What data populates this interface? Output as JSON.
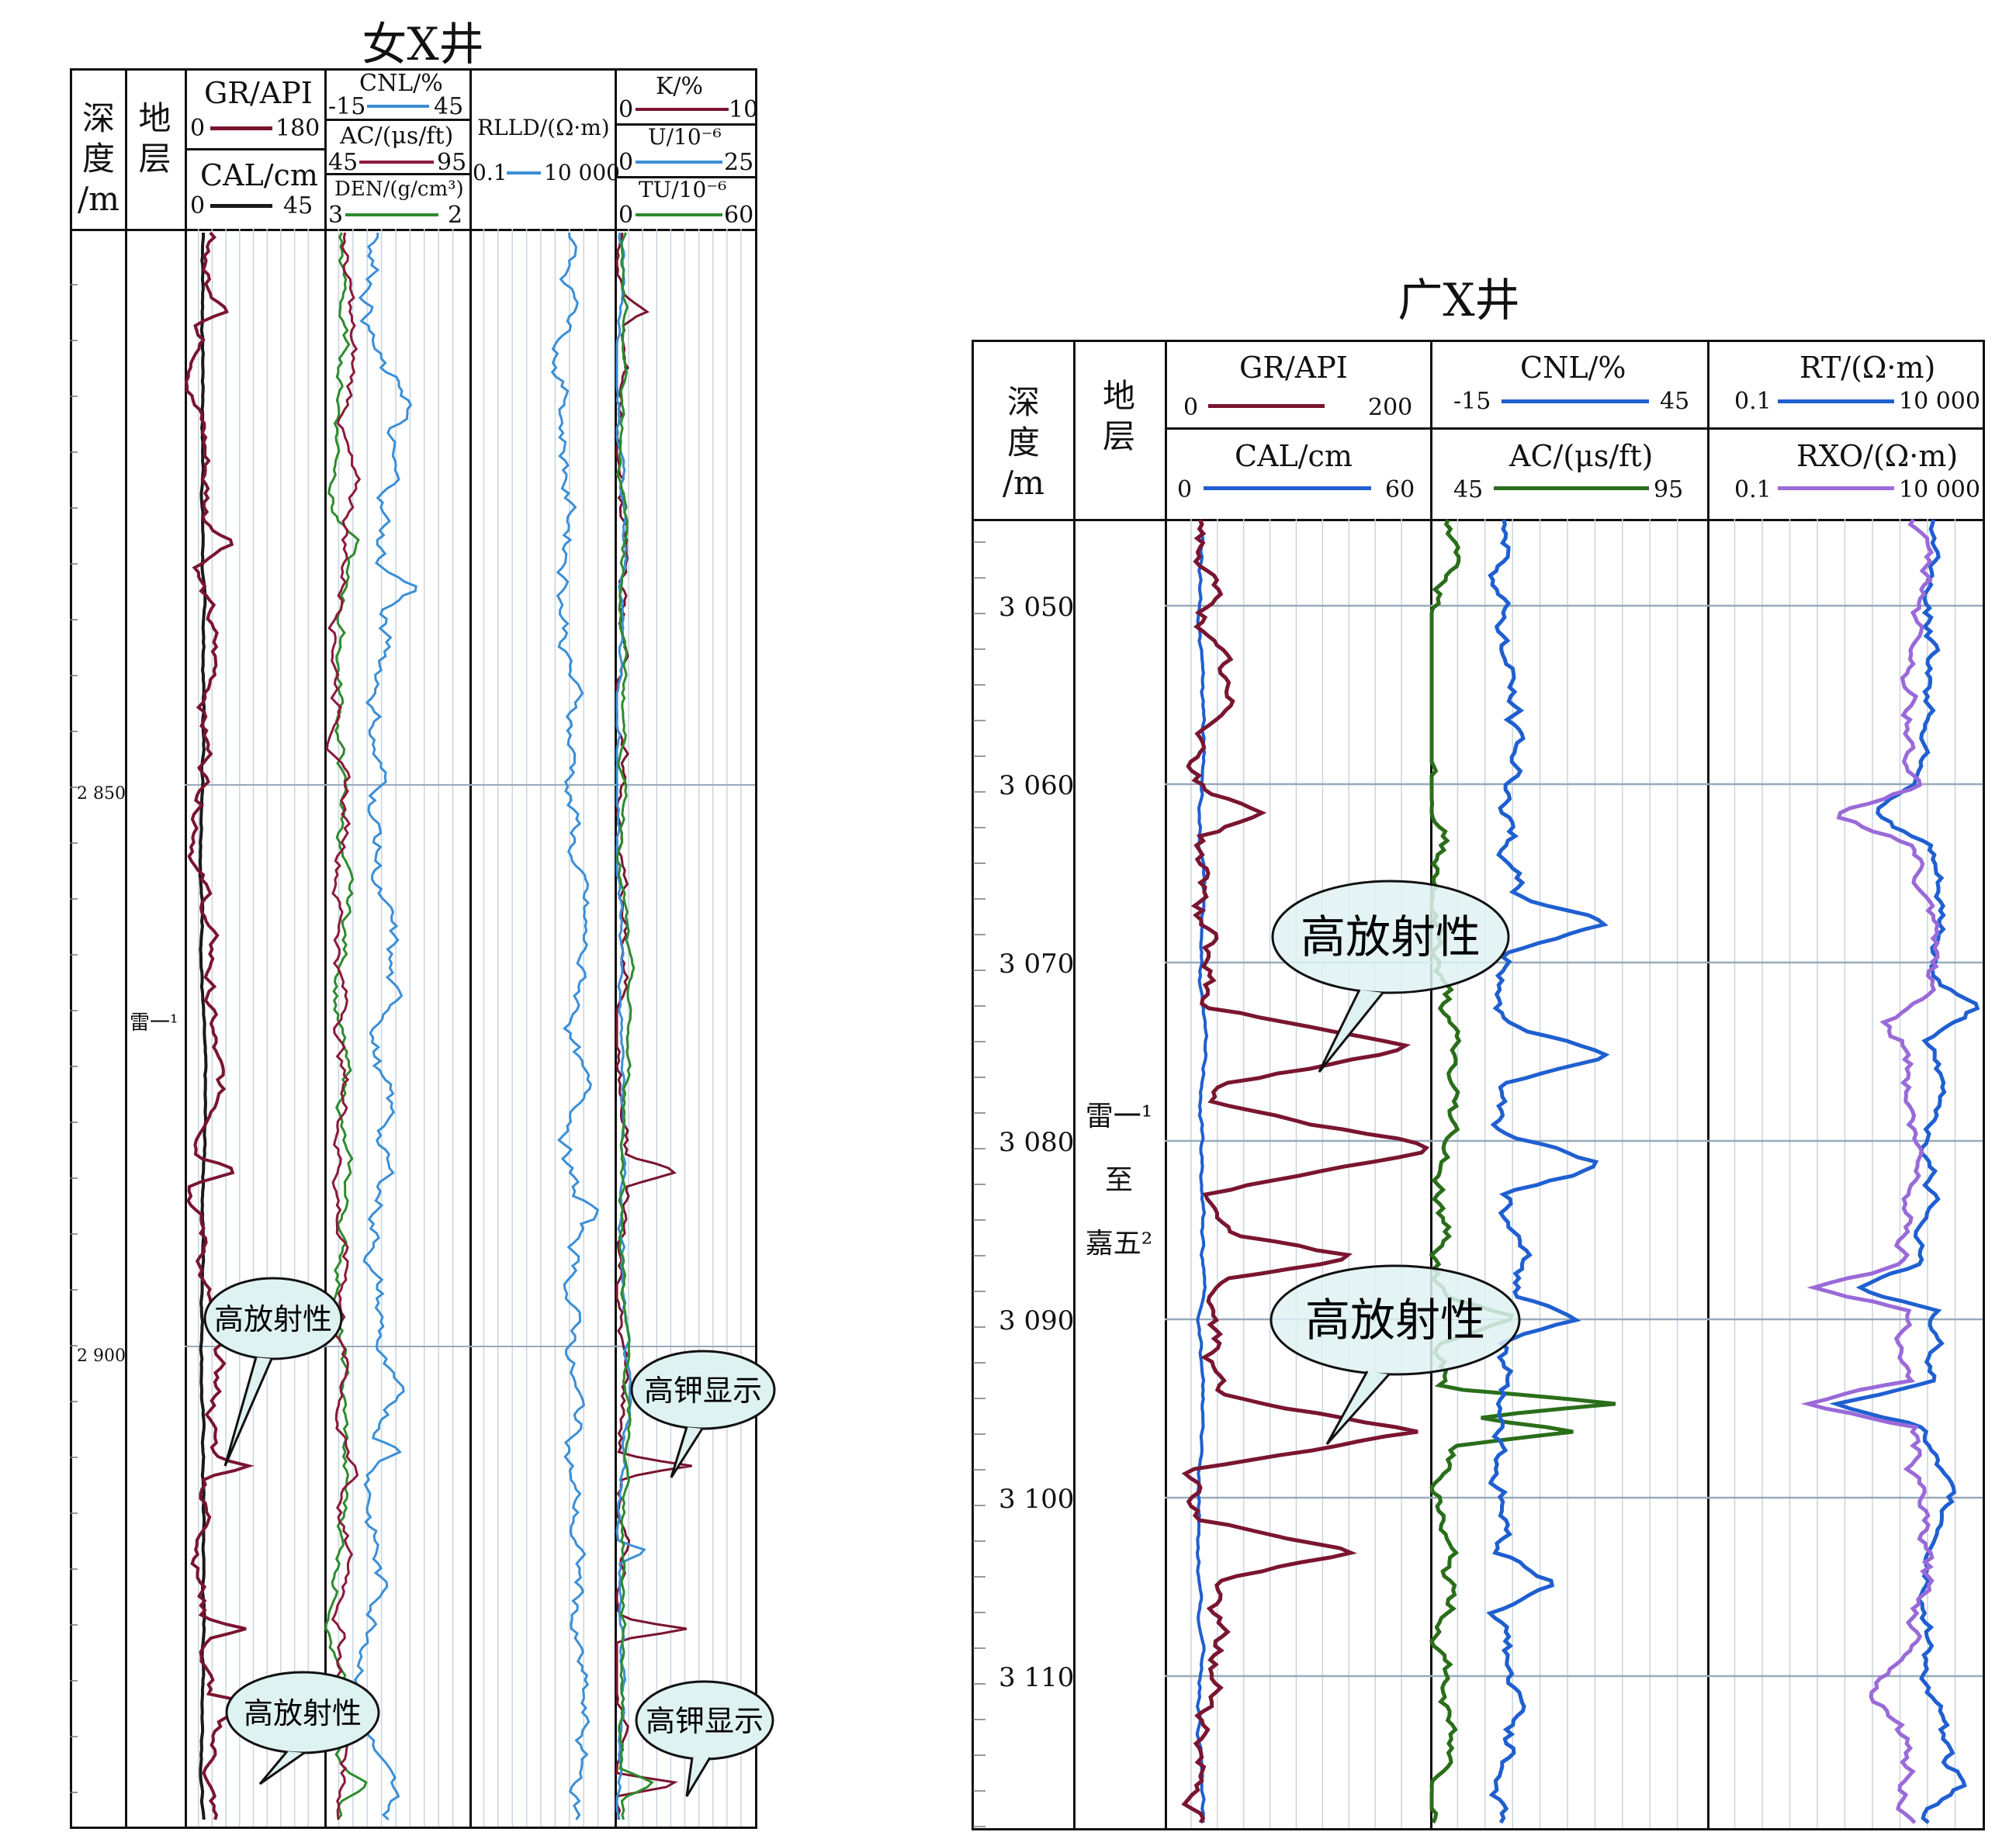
{
  "left_well": {
    "title": "女X井",
    "header": {
      "depth": [
        "深",
        "度",
        "/m"
      ],
      "strata": [
        "地",
        "层"
      ],
      "track1": {
        "top_title": "GR/API",
        "top_min": "0",
        "top_max": "180",
        "bottom_title": "CAL/cm",
        "bottom_min": "0",
        "bottom_max": "45"
      },
      "track2": {
        "a_title": "CNL/%",
        "a_min": "-15",
        "a_max": "45",
        "b_title": "AC/(μs/ft)",
        "b_min": "45",
        "b_max": "95",
        "c_title": "DEN/(g/cm³)",
        "c_min": "3",
        "c_max": "2"
      },
      "track3": {
        "title": "RLLD/(Ω·m)",
        "min": "0.1",
        "max": "10 000"
      },
      "track4": {
        "a_title": "K/%",
        "a_min": "0",
        "a_max": "10",
        "b_title": "U/10⁻⁶",
        "b_min": "0",
        "b_max": "25",
        "c_title": "TU/10⁻⁶",
        "c_min": "0",
        "c_max": "60"
      }
    },
    "depth_labels": [
      "2 850",
      "2 900"
    ],
    "strata_label": "雷一¹",
    "callouts": [
      "高放射性",
      "高放射性",
      "高钾显示",
      "高钾显示"
    ]
  },
  "right_well": {
    "title": "广X井",
    "header": {
      "depth": [
        "深",
        "度",
        "/m"
      ],
      "strata": [
        "地",
        "层"
      ],
      "track1": {
        "top_title": "GR/API",
        "top_min": "0",
        "top_max": "200",
        "bottom_title": "CAL/cm",
        "bottom_min": "0",
        "bottom_max": "60"
      },
      "track2": {
        "top_title": "CNL/%",
        "top_min": "-15",
        "top_max": "45",
        "bottom_title": "AC/(μs/ft)",
        "bottom_min": "45",
        "bottom_max": "95"
      },
      "track3": {
        "top_title": "RT/(Ω·m)",
        "top_min": "0.1",
        "top_max": "10 000",
        "bottom_title": "RXO/(Ω·m)",
        "bottom_min": "0.1",
        "bottom_max": "10 000"
      }
    },
    "depth_labels": [
      "3 050",
      "3 060",
      "3 070",
      "3 080",
      "3 090",
      "3 100",
      "3 110"
    ],
    "strata_label": [
      "雷一¹",
      "至",
      "嘉五²"
    ],
    "callouts": [
      "高放射性",
      "高放射性"
    ]
  },
  "colors": {
    "gr": "#7a1530",
    "cal": "#1a1a1a",
    "cnl": "#3b8fd6",
    "ac": "#8b1a3a",
    "den": "#2e8b2e",
    "rt": "#1f5fd0",
    "rxo": "#9a6ad8",
    "ac_right": "#2a6e1a",
    "callout_fill": "#dff2f2"
  }
}
